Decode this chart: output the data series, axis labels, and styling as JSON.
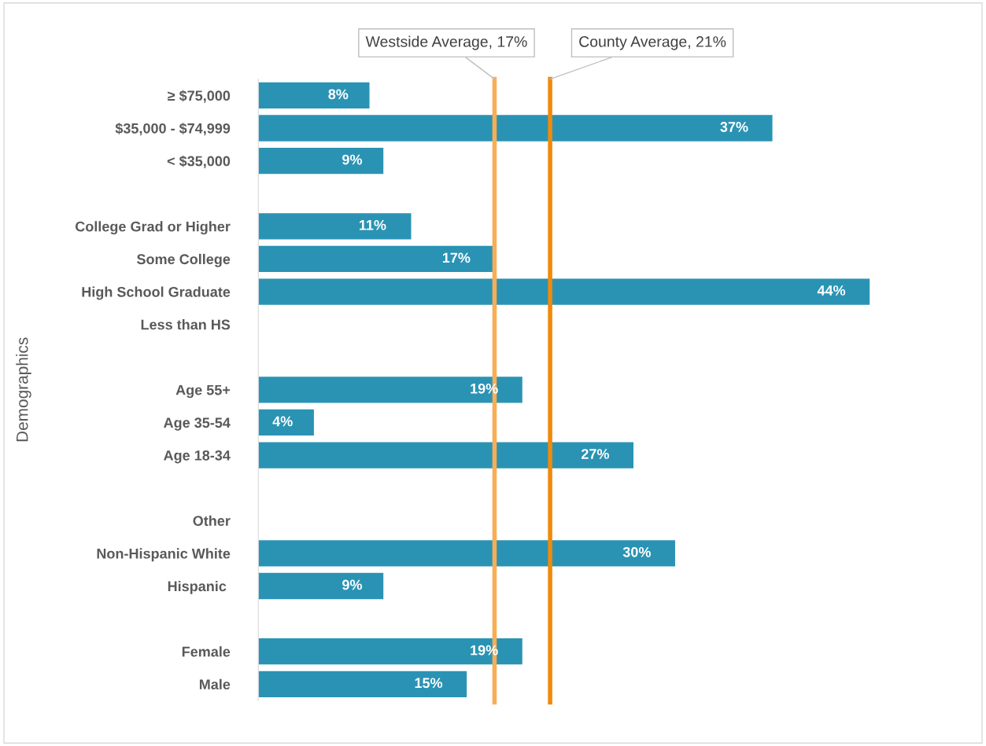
{
  "chart_data": {
    "type": "bar",
    "orientation": "horizontal",
    "ylabel": "Demographics",
    "categories": [
      "≥ $75,000",
      "$35,000 - $74,999",
      "< $35,000",
      null,
      "College Grad or Higher",
      "Some College",
      "High School Graduate",
      "Less than HS",
      null,
      "Age 55+",
      "Age 35-54",
      "Age 18-34",
      null,
      "Other",
      "Non-Hispanic White",
      "Hispanic ",
      null,
      "Female",
      "Male"
    ],
    "values": [
      8,
      37,
      9,
      null,
      11,
      17,
      44,
      null,
      null,
      19,
      4,
      27,
      null,
      null,
      30,
      9,
      null,
      19,
      15
    ],
    "value_labels": [
      "8%",
      "37%",
      "9%",
      null,
      "11%",
      "17%",
      "44%",
      null,
      null,
      "19%",
      "4%",
      "27%",
      null,
      null,
      "30%",
      "9%",
      null,
      "19%",
      "15%"
    ],
    "color": "#2a93b4",
    "tick_labels": "y",
    "ref_lines": [
      {
        "axis": "x",
        "value": 17,
        "label": "Westside Average, 17%",
        "color": "#f7ae57"
      },
      {
        "axis": "x",
        "value": 21,
        "label": "County Average, 21%",
        "color": "#f08a0c"
      }
    ]
  }
}
